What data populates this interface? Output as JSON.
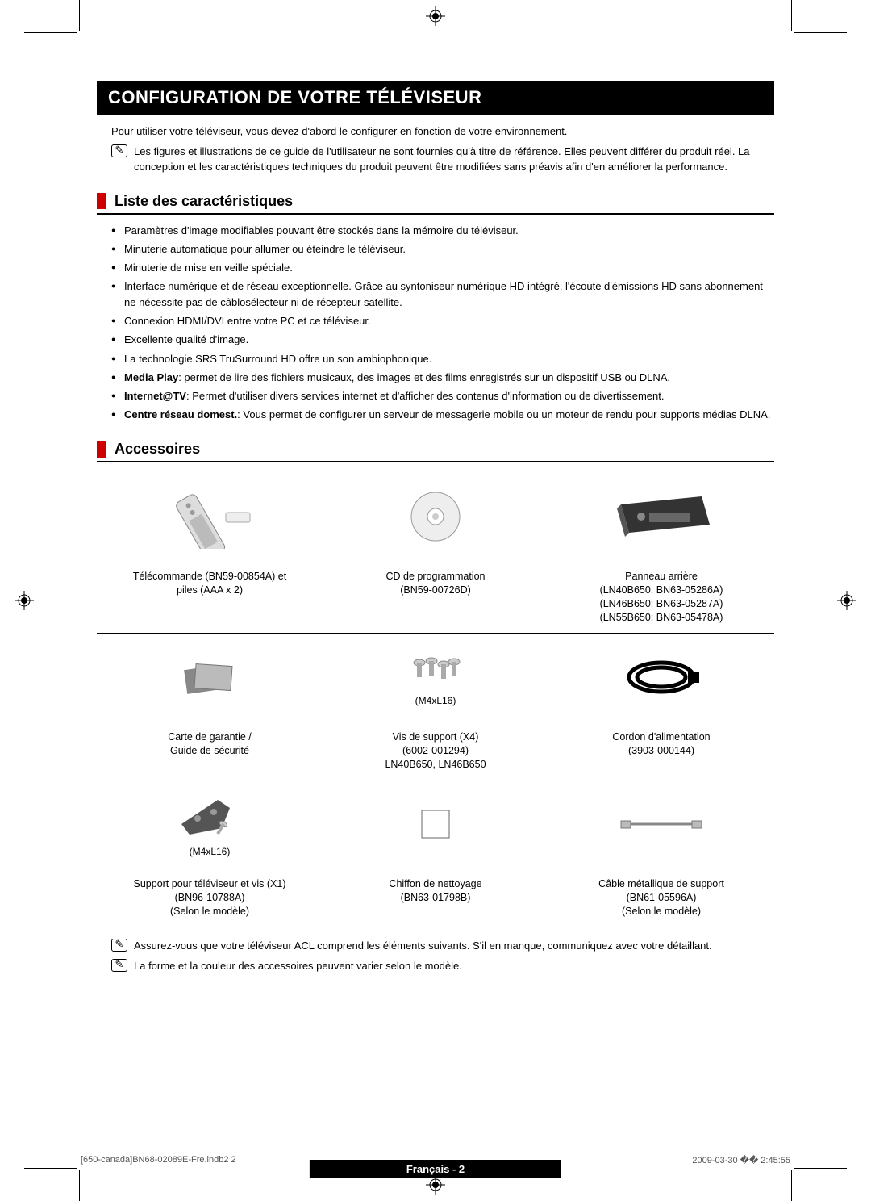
{
  "title": "CONFIGURATION DE VOTRE TÉLÉVISEUR",
  "intro": "Pour utiliser votre téléviseur, vous devez d'abord le configurer en fonction de votre environnement.",
  "intro_note": "Les figures et illustrations de ce guide de l'utilisateur ne sont fournies qu'à titre de référence. Elles peuvent différer du produit réel. La conception et les caractéristiques techniques du produit peuvent être modifiées sans préavis afin d'en améliorer la performance.",
  "section1": {
    "title": "Liste des caractéristiques",
    "items": [
      {
        "text": "Paramètres d'image modifiables pouvant être stockés dans la mémoire du téléviseur."
      },
      {
        "text": "Minuterie automatique pour allumer ou éteindre le téléviseur."
      },
      {
        "text": "Minuterie de mise en veille spéciale."
      },
      {
        "text": "Interface numérique et de réseau exceptionnelle. Grâce au syntoniseur numérique HD intégré, l'écoute d'émissions HD sans abonnement ne nécessite pas de câblosélecteur ni de récepteur satellite."
      },
      {
        "text": "Connexion HDMI/DVI entre votre PC et ce téléviseur."
      },
      {
        "text": "Excellente qualité d'image."
      },
      {
        "text": "La technologie SRS TruSurround HD offre un son ambiophonique."
      },
      {
        "bold": "Media Play",
        "text": ": permet de lire des fichiers musicaux, des images et des films enregistrés sur un dispositif USB ou DLNA."
      },
      {
        "bold": "Internet@TV",
        "text": ": Permet d'utiliser divers services internet et d'afficher des contenus d'information ou de divertissement."
      },
      {
        "bold": "Centre réseau domest.",
        "text": ": Vous permet de configurer un serveur de messagerie mobile ou un moteur de rendu pour supports médias DLNA."
      }
    ]
  },
  "section2": {
    "title": "Accessoires",
    "rows": [
      [
        {
          "img_sub": "",
          "label": "Télécommande (BN59-00854A) et\npiles (AAA x 2)"
        },
        {
          "img_sub": "",
          "label": "CD de programmation\n(BN59-00726D)"
        },
        {
          "img_sub": "",
          "label": "Panneau arrière\n(LN40B650: BN63-05286A)\n(LN46B650: BN63-05287A)\n(LN55B650: BN63-05478A)"
        }
      ],
      [
        {
          "img_sub": "",
          "label": "Carte de garantie /\nGuide de sécurité"
        },
        {
          "img_sub": "(M4xL16)",
          "label": "Vis de support (X4)\n(6002-001294)\nLN40B650, LN46B650"
        },
        {
          "img_sub": "",
          "label": "Cordon d'alimentation\n(3903-000144)"
        }
      ],
      [
        {
          "img_sub": "(M4xL16)",
          "label": "Support pour téléviseur et vis (X1)\n(BN96-10788A)\n(Selon le modèle)"
        },
        {
          "img_sub": "",
          "label": "Chiffon de nettoyage\n(BN63-01798B)"
        },
        {
          "img_sub": "",
          "label": "Câble métallique de support\n(BN61-05596A)\n(Selon le modèle)"
        }
      ]
    ]
  },
  "footer_notes": [
    "Assurez-vous que votre téléviseur ACL comprend les éléments suivants. S'il en manque, communiquez avec votre détaillant.",
    "La forme et la couleur des accessoires peuvent varier selon le modèle."
  ],
  "page_lang": "Français - 2",
  "doc_footer_left": "[650-canada]BN68-02089E-Fre.indb2   2",
  "doc_footer_right": "2009-03-30   �� 2:45:55",
  "colors": {
    "red": "#c00000",
    "black": "#000000"
  }
}
